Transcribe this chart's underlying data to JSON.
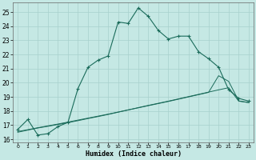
{
  "xlabel": "Humidex (Indice chaleur)",
  "background_color": "#c5e8e4",
  "grid_color": "#a8d0cc",
  "line_color": "#1a6b5a",
  "xlim": [
    -0.5,
    23.5
  ],
  "ylim": [
    15.8,
    25.7
  ],
  "yticks": [
    16,
    17,
    18,
    19,
    20,
    21,
    22,
    23,
    24,
    25
  ],
  "xticks": [
    0,
    1,
    2,
    3,
    4,
    5,
    6,
    7,
    8,
    9,
    10,
    11,
    12,
    13,
    14,
    15,
    16,
    17,
    18,
    19,
    20,
    21,
    22,
    23
  ],
  "curve1_x": [
    0,
    1,
    2,
    3,
    4,
    5,
    6,
    7,
    8,
    9,
    10,
    11,
    12,
    13,
    14,
    15,
    16,
    17,
    18,
    19,
    20,
    21,
    22,
    23
  ],
  "curve1_y": [
    16.7,
    17.4,
    16.3,
    16.4,
    16.9,
    17.2,
    19.6,
    21.1,
    21.6,
    21.9,
    24.3,
    24.2,
    25.3,
    24.7,
    23.7,
    23.1,
    23.3,
    23.3,
    22.2,
    21.7,
    21.1,
    19.5,
    18.9,
    18.7
  ],
  "curve2_x": [
    0,
    1,
    2,
    3,
    4,
    5,
    6,
    7,
    8,
    9,
    10,
    11,
    12,
    13,
    14,
    15,
    16,
    17,
    18,
    19,
    20,
    21,
    22,
    23
  ],
  "curve2_y": [
    16.5,
    16.65,
    16.8,
    16.92,
    17.05,
    17.18,
    17.32,
    17.47,
    17.61,
    17.76,
    17.92,
    18.08,
    18.24,
    18.4,
    18.55,
    18.7,
    18.86,
    19.02,
    19.18,
    19.34,
    19.5,
    19.65,
    18.7,
    18.6
  ],
  "curve3_x": [
    0,
    1,
    2,
    3,
    4,
    5,
    6,
    7,
    8,
    9,
    10,
    11,
    12,
    13,
    14,
    15,
    16,
    17,
    18,
    19,
    20,
    21,
    22,
    23
  ],
  "curve3_y": [
    16.55,
    16.68,
    16.82,
    16.95,
    17.08,
    17.22,
    17.36,
    17.5,
    17.64,
    17.78,
    17.93,
    18.08,
    18.23,
    18.38,
    18.53,
    18.68,
    18.84,
    19.0,
    19.16,
    19.32,
    20.5,
    20.1,
    18.72,
    18.6
  ]
}
